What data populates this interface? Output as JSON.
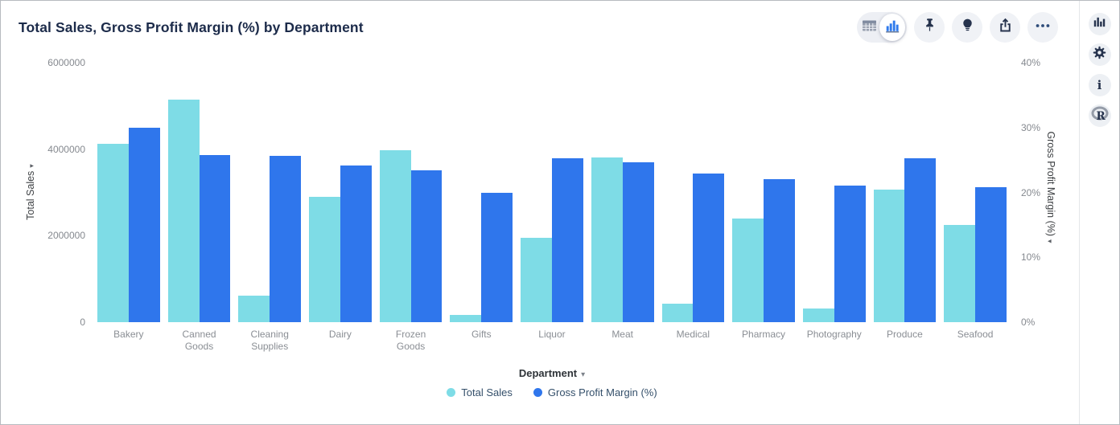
{
  "header": {
    "title": "Total Sales, Gross Profit Margin (%) by Department"
  },
  "toolbar": {
    "view_toggle": [
      {
        "icon": "table-view-icon",
        "selected": false
      },
      {
        "icon": "chart-view-icon",
        "selected": true
      }
    ],
    "buttons": [
      {
        "icon": "pin-icon"
      },
      {
        "icon": "lightbulb-icon"
      },
      {
        "icon": "share-icon"
      },
      {
        "icon": "more-options-icon"
      }
    ]
  },
  "sidebar": {
    "buttons": [
      {
        "icon": "chart-type-icon"
      },
      {
        "icon": "settings-gear-icon"
      },
      {
        "icon": "info-icon",
        "glyph": "i"
      },
      {
        "icon": "r-logo-icon",
        "glyph": "R"
      }
    ]
  },
  "icons": {
    "dropdown_arrow": "▾",
    "axis_sort_arrow": "▾"
  },
  "colors": {
    "total_sales": "#7EDCE6",
    "gross_profit_margin": "#2F76EC",
    "title_text": "#1C2B4A",
    "accent_blue": "#2F7AEC"
  },
  "chart_data": {
    "type": "bar",
    "title": "Total Sales, Gross Profit Margin (%) by Department",
    "xlabel": "Department",
    "grid": false,
    "legend_position": "bottom",
    "categories": [
      "Bakery",
      "Canned Goods",
      "Cleaning Supplies",
      "Dairy",
      "Frozen Goods",
      "Gifts",
      "Liquor",
      "Meat",
      "Medical",
      "Pharmacy",
      "Photography",
      "Produce",
      "Seafood"
    ],
    "series": [
      {
        "name": "Total Sales",
        "axis": "left",
        "color": "#7EDCE6",
        "values": [
          4130000,
          5140000,
          620000,
          2900000,
          3970000,
          170000,
          1960000,
          3800000,
          420000,
          2400000,
          320000,
          3060000,
          2250000
        ]
      },
      {
        "name": "Gross Profit Margin (%)",
        "axis": "right",
        "color": "#2F76EC",
        "values": [
          30.0,
          25.8,
          25.6,
          24.1,
          23.4,
          20.0,
          25.3,
          24.7,
          22.9,
          22.1,
          21.1,
          25.3,
          20.8
        ]
      }
    ],
    "y_left": {
      "label": "Total Sales",
      "min": 0,
      "max": 6000000,
      "ticks": [
        0,
        2000000,
        4000000,
        6000000
      ]
    },
    "y_right": {
      "label": "Gross Profit Margin (%)",
      "min": 0,
      "max": 40,
      "ticks": [
        0,
        10,
        20,
        30,
        40
      ],
      "suffix": "%"
    }
  }
}
